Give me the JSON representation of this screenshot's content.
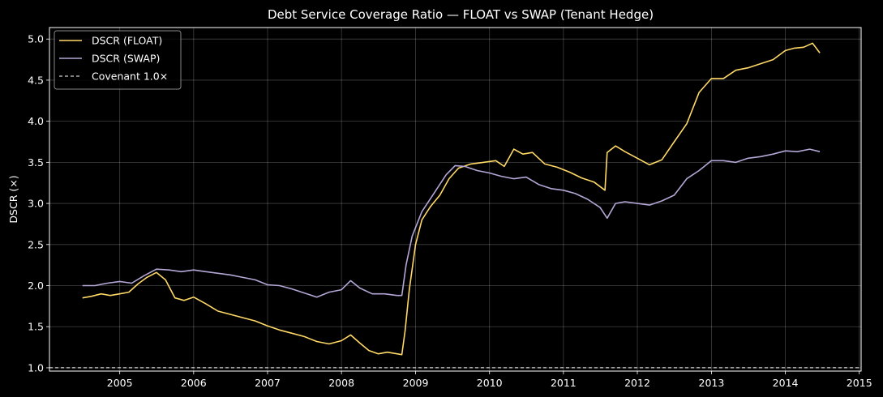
{
  "chart_data": {
    "type": "line",
    "title": "Debt Service Coverage Ratio — FLOAT vs SWAP (Tenant Hedge)",
    "xlabel": "",
    "ylabel": "DSCR (×)",
    "xlim": [
      "2004-01-20",
      "2015-01-10"
    ],
    "ylim": [
      0.96,
      5.14
    ],
    "x_ticks": [
      "2005",
      "2006",
      "2007",
      "2008",
      "2009",
      "2010",
      "2011",
      "2012",
      "2013",
      "2014",
      "2015"
    ],
    "y_ticks": [
      "1.0",
      "1.5",
      "2.0",
      "2.5",
      "3.0",
      "3.5",
      "4.0",
      "4.5",
      "5.0"
    ],
    "grid": true,
    "legend_position": "top-left",
    "series": [
      {
        "name": "DSCR (FLOAT)",
        "color": "#ffd966",
        "style": "solid",
        "points": [
          [
            "2004-07-01",
            1.85
          ],
          [
            "2004-08-15",
            1.87
          ],
          [
            "2004-10-01",
            1.9
          ],
          [
            "2004-11-15",
            1.88
          ],
          [
            "2005-01-01",
            1.9
          ],
          [
            "2005-02-15",
            1.92
          ],
          [
            "2005-04-01",
            2.02
          ],
          [
            "2005-05-15",
            2.1
          ],
          [
            "2005-07-01",
            2.16
          ],
          [
            "2005-08-15",
            2.07
          ],
          [
            "2005-10-01",
            1.85
          ],
          [
            "2005-11-15",
            1.82
          ],
          [
            "2006-01-01",
            1.86
          ],
          [
            "2006-03-01",
            1.78
          ],
          [
            "2006-05-01",
            1.69
          ],
          [
            "2006-07-01",
            1.65
          ],
          [
            "2006-09-01",
            1.61
          ],
          [
            "2006-11-01",
            1.57
          ],
          [
            "2007-01-01",
            1.51
          ],
          [
            "2007-03-01",
            1.46
          ],
          [
            "2007-05-01",
            1.42
          ],
          [
            "2007-07-01",
            1.38
          ],
          [
            "2007-09-01",
            1.32
          ],
          [
            "2007-11-01",
            1.29
          ],
          [
            "2008-01-01",
            1.33
          ],
          [
            "2008-02-15",
            1.4
          ],
          [
            "2008-04-01",
            1.3
          ],
          [
            "2008-05-15",
            1.21
          ],
          [
            "2008-07-01",
            1.17
          ],
          [
            "2008-08-15",
            1.19
          ],
          [
            "2008-10-01",
            1.17
          ],
          [
            "2008-10-25",
            1.16
          ],
          [
            "2008-11-10",
            1.45
          ],
          [
            "2008-12-01",
            1.95
          ],
          [
            "2009-01-01",
            2.5
          ],
          [
            "2009-02-01",
            2.8
          ],
          [
            "2009-03-15",
            2.96
          ],
          [
            "2009-05-01",
            3.1
          ],
          [
            "2009-06-15",
            3.3
          ],
          [
            "2009-08-01",
            3.43
          ],
          [
            "2009-10-01",
            3.48
          ],
          [
            "2009-12-01",
            3.5
          ],
          [
            "2010-02-01",
            3.52
          ],
          [
            "2010-03-15",
            3.45
          ],
          [
            "2010-05-01",
            3.66
          ],
          [
            "2010-06-15",
            3.6
          ],
          [
            "2010-08-01",
            3.62
          ],
          [
            "2010-10-01",
            3.48
          ],
          [
            "2010-12-01",
            3.44
          ],
          [
            "2011-02-01",
            3.38
          ],
          [
            "2011-04-01",
            3.31
          ],
          [
            "2011-06-01",
            3.26
          ],
          [
            "2011-07-25",
            3.16
          ],
          [
            "2011-08-05",
            3.62
          ],
          [
            "2011-09-15",
            3.7
          ],
          [
            "2011-11-01",
            3.63
          ],
          [
            "2012-01-01",
            3.55
          ],
          [
            "2012-03-01",
            3.47
          ],
          [
            "2012-05-01",
            3.53
          ],
          [
            "2012-07-01",
            3.75
          ],
          [
            "2012-09-01",
            3.97
          ],
          [
            "2012-11-01",
            4.35
          ],
          [
            "2013-01-01",
            4.52
          ],
          [
            "2013-03-01",
            4.52
          ],
          [
            "2013-05-01",
            4.62
          ],
          [
            "2013-07-01",
            4.65
          ],
          [
            "2013-09-01",
            4.7
          ],
          [
            "2013-11-01",
            4.75
          ],
          [
            "2014-01-01",
            4.86
          ],
          [
            "2014-02-15",
            4.89
          ],
          [
            "2014-04-01",
            4.9
          ],
          [
            "2014-05-15",
            4.95
          ],
          [
            "2014-06-20",
            4.83
          ]
        ]
      },
      {
        "name": "DSCR (SWAP)",
        "color": "#b4a7d6",
        "style": "solid",
        "points": [
          [
            "2004-07-01",
            2.0
          ],
          [
            "2004-09-01",
            2.0
          ],
          [
            "2004-11-01",
            2.03
          ],
          [
            "2005-01-01",
            2.05
          ],
          [
            "2005-03-01",
            2.03
          ],
          [
            "2005-05-01",
            2.12
          ],
          [
            "2005-07-01",
            2.2
          ],
          [
            "2005-09-01",
            2.19
          ],
          [
            "2005-11-01",
            2.17
          ],
          [
            "2006-01-01",
            2.19
          ],
          [
            "2006-03-01",
            2.17
          ],
          [
            "2006-05-01",
            2.15
          ],
          [
            "2006-07-01",
            2.13
          ],
          [
            "2006-09-01",
            2.1
          ],
          [
            "2006-11-01",
            2.07
          ],
          [
            "2007-01-01",
            2.01
          ],
          [
            "2007-03-01",
            2.0
          ],
          [
            "2007-05-01",
            1.96
          ],
          [
            "2007-07-01",
            1.91
          ],
          [
            "2007-09-01",
            1.86
          ],
          [
            "2007-11-01",
            1.92
          ],
          [
            "2008-01-01",
            1.95
          ],
          [
            "2008-02-15",
            2.06
          ],
          [
            "2008-04-01",
            1.97
          ],
          [
            "2008-06-01",
            1.9
          ],
          [
            "2008-08-01",
            1.9
          ],
          [
            "2008-10-01",
            1.88
          ],
          [
            "2008-10-25",
            1.88
          ],
          [
            "2008-11-15",
            2.25
          ],
          [
            "2008-12-15",
            2.6
          ],
          [
            "2009-02-01",
            2.9
          ],
          [
            "2009-04-01",
            3.12
          ],
          [
            "2009-06-01",
            3.35
          ],
          [
            "2009-07-15",
            3.46
          ],
          [
            "2009-09-01",
            3.45
          ],
          [
            "2009-11-01",
            3.4
          ],
          [
            "2010-01-01",
            3.37
          ],
          [
            "2010-03-01",
            3.33
          ],
          [
            "2010-05-01",
            3.3
          ],
          [
            "2010-07-01",
            3.32
          ],
          [
            "2010-09-01",
            3.23
          ],
          [
            "2010-11-01",
            3.18
          ],
          [
            "2011-01-01",
            3.16
          ],
          [
            "2011-03-01",
            3.12
          ],
          [
            "2011-05-01",
            3.05
          ],
          [
            "2011-07-01",
            2.95
          ],
          [
            "2011-08-05",
            2.82
          ],
          [
            "2011-09-15",
            3.0
          ],
          [
            "2011-11-01",
            3.02
          ],
          [
            "2012-01-01",
            3.0
          ],
          [
            "2012-03-01",
            2.98
          ],
          [
            "2012-05-01",
            3.03
          ],
          [
            "2012-07-01",
            3.1
          ],
          [
            "2012-09-01",
            3.3
          ],
          [
            "2012-11-01",
            3.4
          ],
          [
            "2013-01-01",
            3.52
          ],
          [
            "2013-03-01",
            3.52
          ],
          [
            "2013-05-01",
            3.5
          ],
          [
            "2013-07-01",
            3.55
          ],
          [
            "2013-09-01",
            3.57
          ],
          [
            "2013-11-01",
            3.6
          ],
          [
            "2014-01-01",
            3.64
          ],
          [
            "2014-03-01",
            3.63
          ],
          [
            "2014-05-01",
            3.66
          ],
          [
            "2014-06-20",
            3.63
          ]
        ]
      },
      {
        "name": "Covenant 1.0×",
        "color": "#ffffff",
        "style": "dashed",
        "points": [
          [
            "2004-01-20",
            1.0
          ],
          [
            "2015-01-10",
            1.0
          ]
        ]
      }
    ]
  }
}
